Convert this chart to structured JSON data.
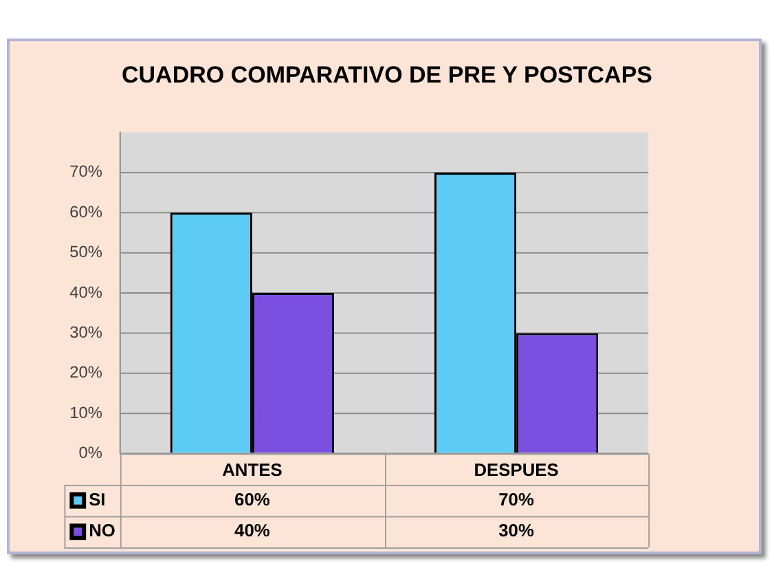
{
  "chart_data": {
    "type": "bar",
    "title": "CUADRO COMPARATIVO DE PRE Y POSTCAPS",
    "categories": [
      "ANTES",
      "DESPUES"
    ],
    "series": [
      {
        "name": "SI",
        "color": "#5ccbf6",
        "values": [
          60,
          70
        ],
        "value_labels": [
          "60%",
          "70%"
        ]
      },
      {
        "name": "NO",
        "color": "#7b4fe0",
        "values": [
          40,
          30
        ],
        "value_labels": [
          "40%",
          "30%"
        ]
      }
    ],
    "ylim": [
      0,
      80
    ],
    "yticks": [
      {
        "value": 0,
        "label": "0%"
      },
      {
        "value": 10,
        "label": "10%"
      },
      {
        "value": 20,
        "label": "20%"
      },
      {
        "value": 30,
        "label": "30%"
      },
      {
        "value": 40,
        "label": "40%"
      },
      {
        "value": 50,
        "label": "50%"
      },
      {
        "value": 60,
        "label": "60%"
      },
      {
        "value": 70,
        "label": "70%"
      }
    ],
    "grid": "y",
    "legend": "bottom"
  }
}
